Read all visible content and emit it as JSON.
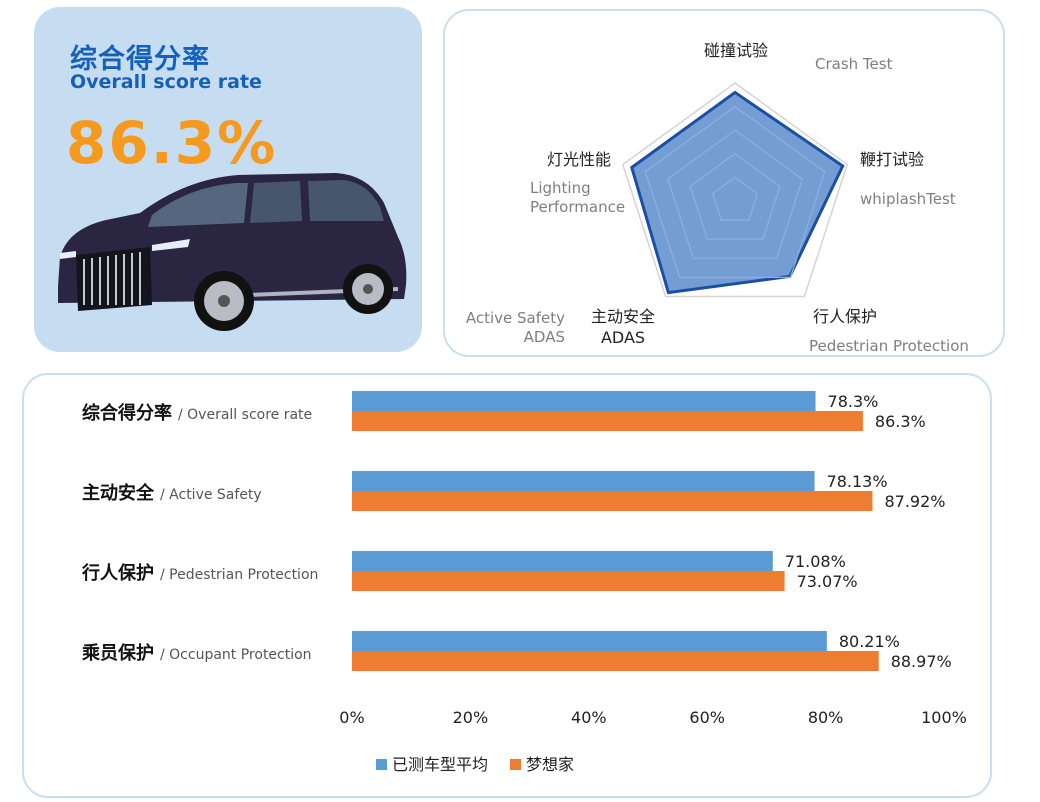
{
  "score_card": {
    "title_cn": "综合得分率",
    "title_en": "Overall score rate",
    "value": "86.3%"
  },
  "radar": {
    "axes": [
      {
        "cn": "碰撞试验",
        "en": "Crash Test"
      },
      {
        "cn": "鞭打试验",
        "en": "whiplashTest"
      },
      {
        "cn": "行人保护",
        "en": "Pedestrian Protection"
      },
      {
        "cn": "主动安全\nADAS",
        "en": "Active Safety\nADAS"
      },
      {
        "cn": "灯光性能",
        "en": "Lighting\nPerformance"
      }
    ],
    "values": [
      0.92,
      0.96,
      0.79,
      0.96,
      0.92
    ],
    "fill_color": "#6d98d2",
    "stroke_color": "#1b4fa3"
  },
  "chart_data": {
    "type": "bar",
    "orientation": "horizontal",
    "categories": [
      {
        "cn": "综合得分率",
        "en": "/ Overall score rate"
      },
      {
        "cn": "主动安全",
        "en": "/ Active Safety"
      },
      {
        "cn": "行人保护",
        "en": "/ Pedestrian Protection"
      },
      {
        "cn": "乘员保护",
        "en": "/ Occupant Protection"
      }
    ],
    "series": [
      {
        "name": "已测车型平均",
        "color": "#5b9bd5",
        "values": [
          78.3,
          78.13,
          71.08,
          80.21
        ],
        "labels": [
          "78.3%",
          "78.13%",
          "71.08%",
          "80.21%"
        ]
      },
      {
        "name": "梦想家",
        "color": "#ed7d31",
        "values": [
          86.3,
          87.92,
          73.07,
          88.97
        ],
        "labels": [
          "86.3%",
          "87.92%",
          "73.07%",
          "88.97%"
        ]
      }
    ],
    "xlim": [
      0,
      100
    ],
    "xticks": [
      "0%",
      "20%",
      "40%",
      "60%",
      "80%",
      "100%"
    ],
    "legend_position": "bottom"
  }
}
